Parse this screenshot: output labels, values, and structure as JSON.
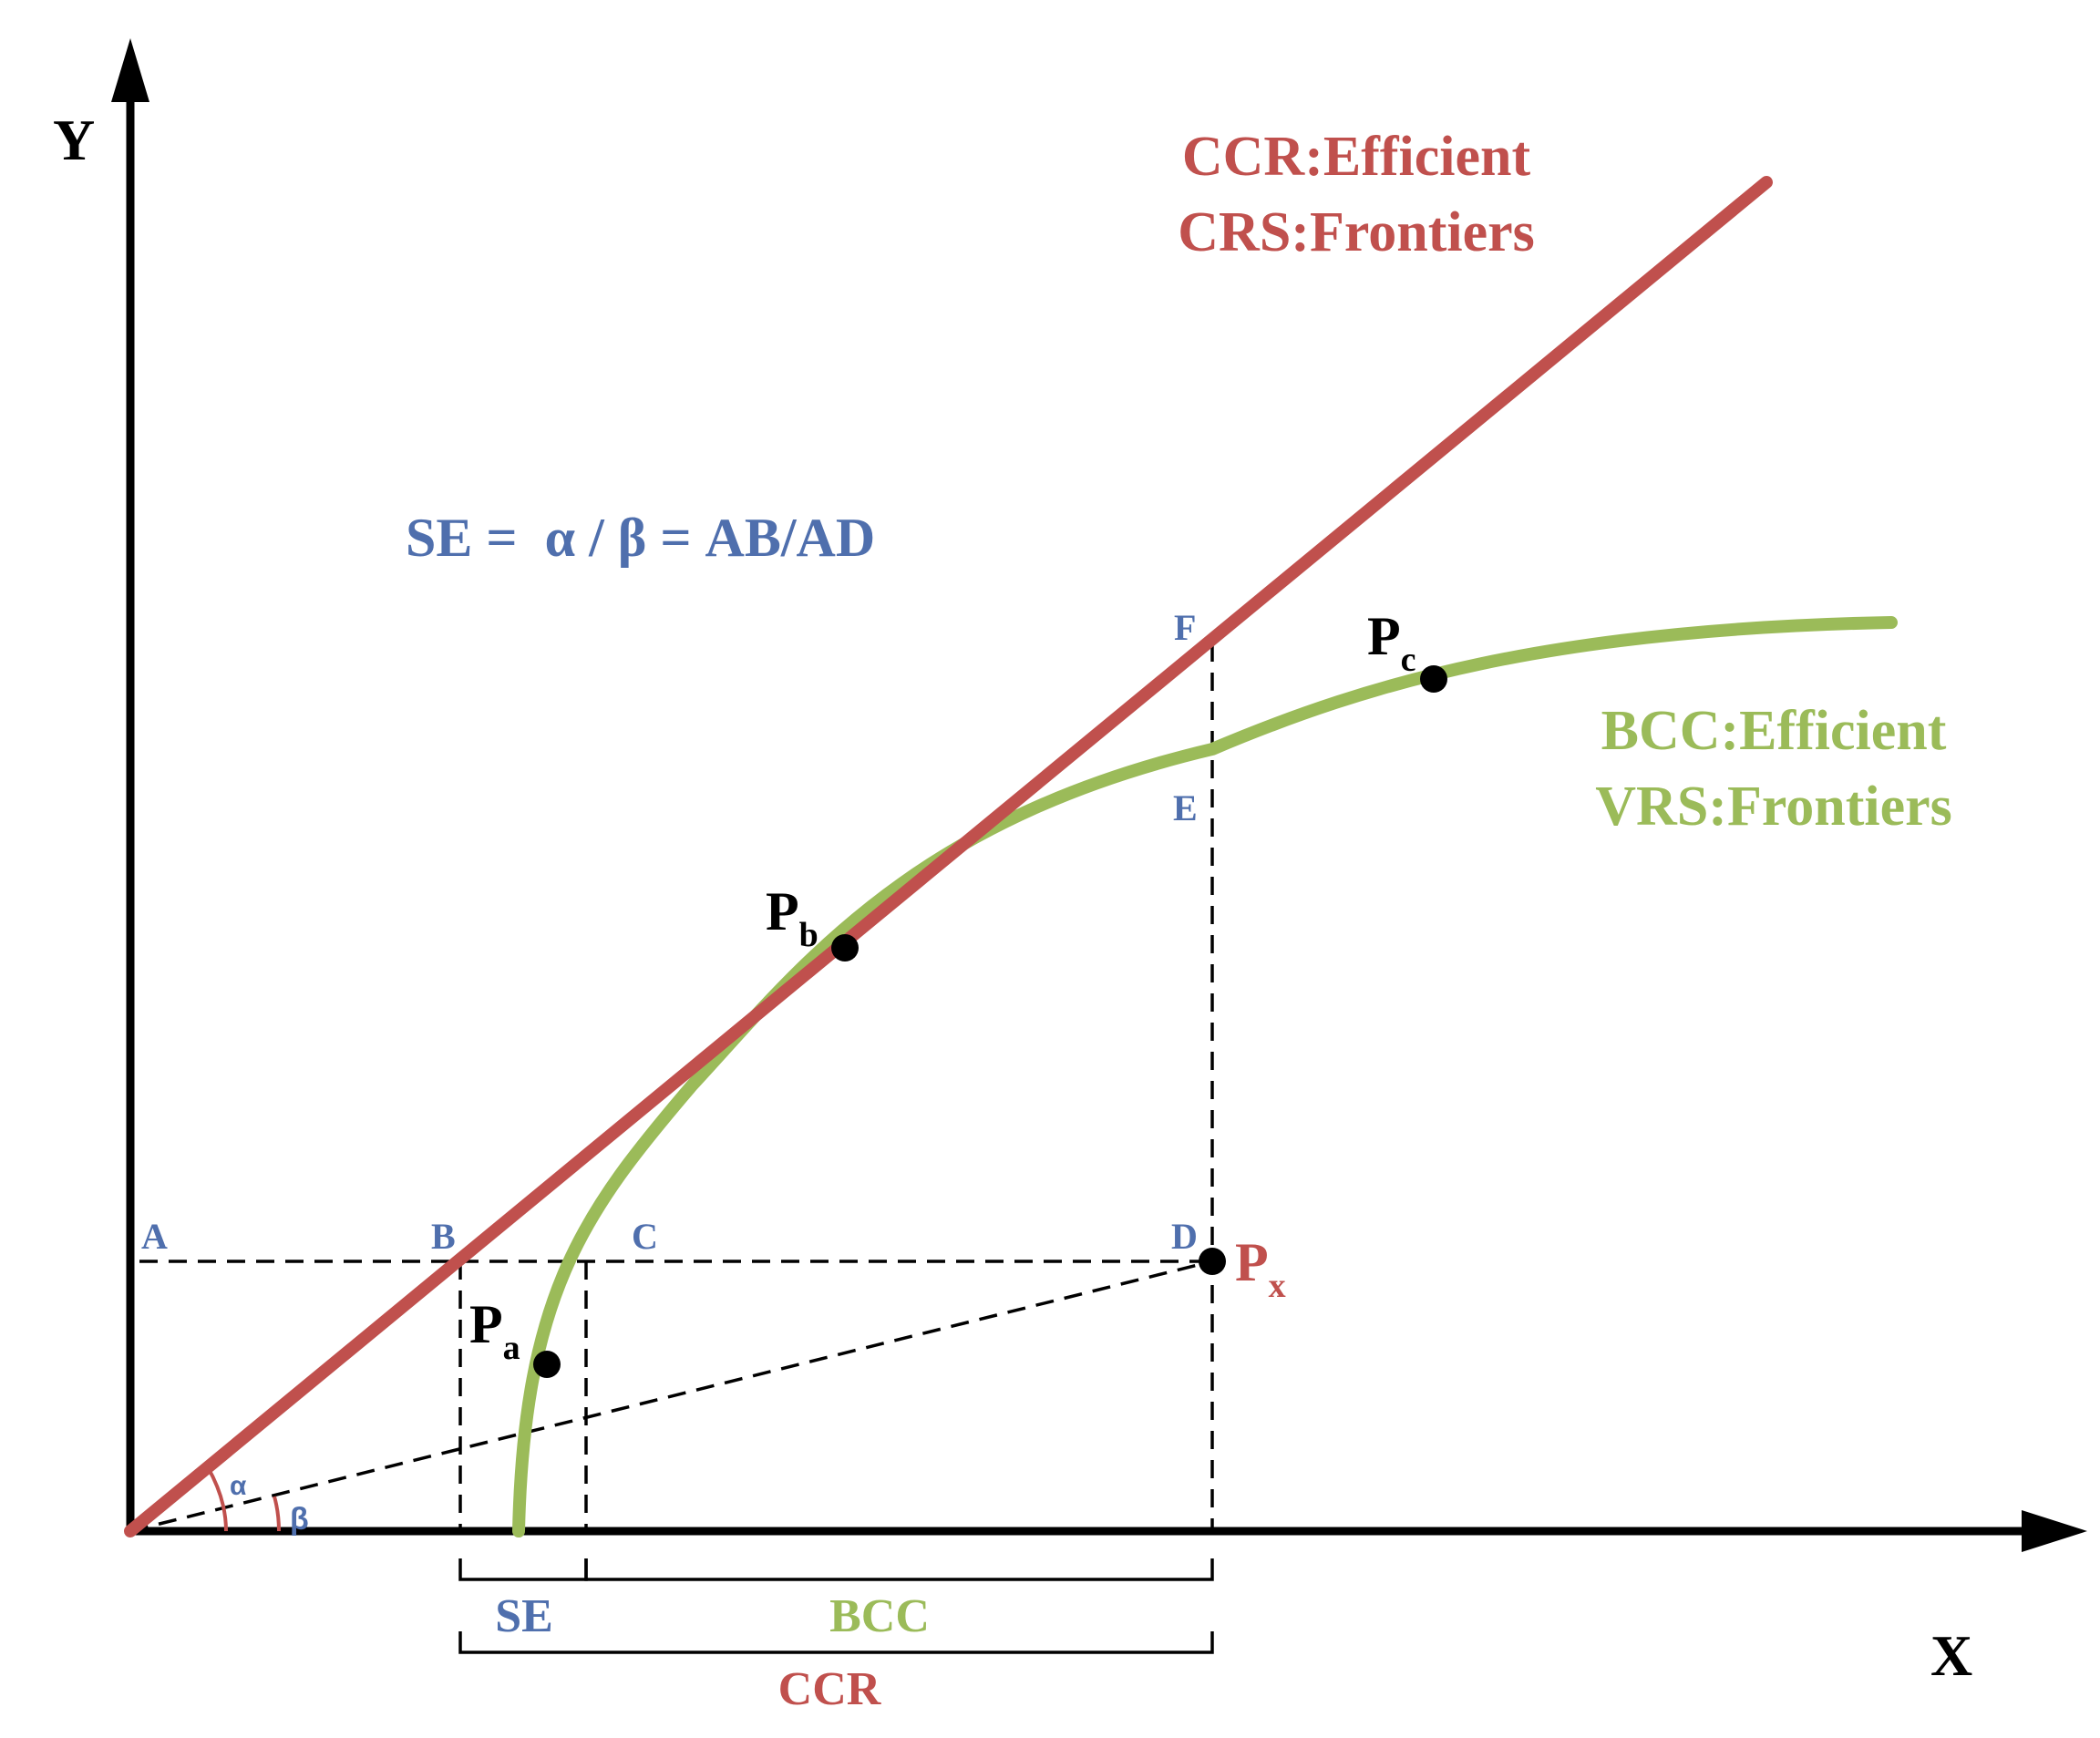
{
  "axes": {
    "x_label": "X",
    "y_label": "Y"
  },
  "frontiers": {
    "crs": {
      "line1": "CCR:Efficient",
      "line2": "CRS:Frontiers"
    },
    "vrs": {
      "line1": "BCC:Efficient",
      "line2": "VRS:Frontiers"
    }
  },
  "formula": "SE =  α / β = AB/AD",
  "points": {
    "A": "A",
    "B": "B",
    "C": "C",
    "D": "D",
    "E": "E",
    "F": "F"
  },
  "dmus": {
    "pa": {
      "base": "P",
      "sub": "a"
    },
    "pb": {
      "base": "P",
      "sub": "b"
    },
    "pc": {
      "base": "P",
      "sub": "c"
    },
    "px": {
      "base": "P",
      "sub": "x"
    }
  },
  "angles": {
    "alpha": "α",
    "beta": "β"
  },
  "brackets": {
    "se": "SE",
    "bcc": "BCC",
    "ccr": "CCR"
  },
  "colors": {
    "crs": "#c0504d",
    "vrs": "#9bbb59",
    "label_blue": "#4f6fad",
    "axis": "#000000"
  }
}
